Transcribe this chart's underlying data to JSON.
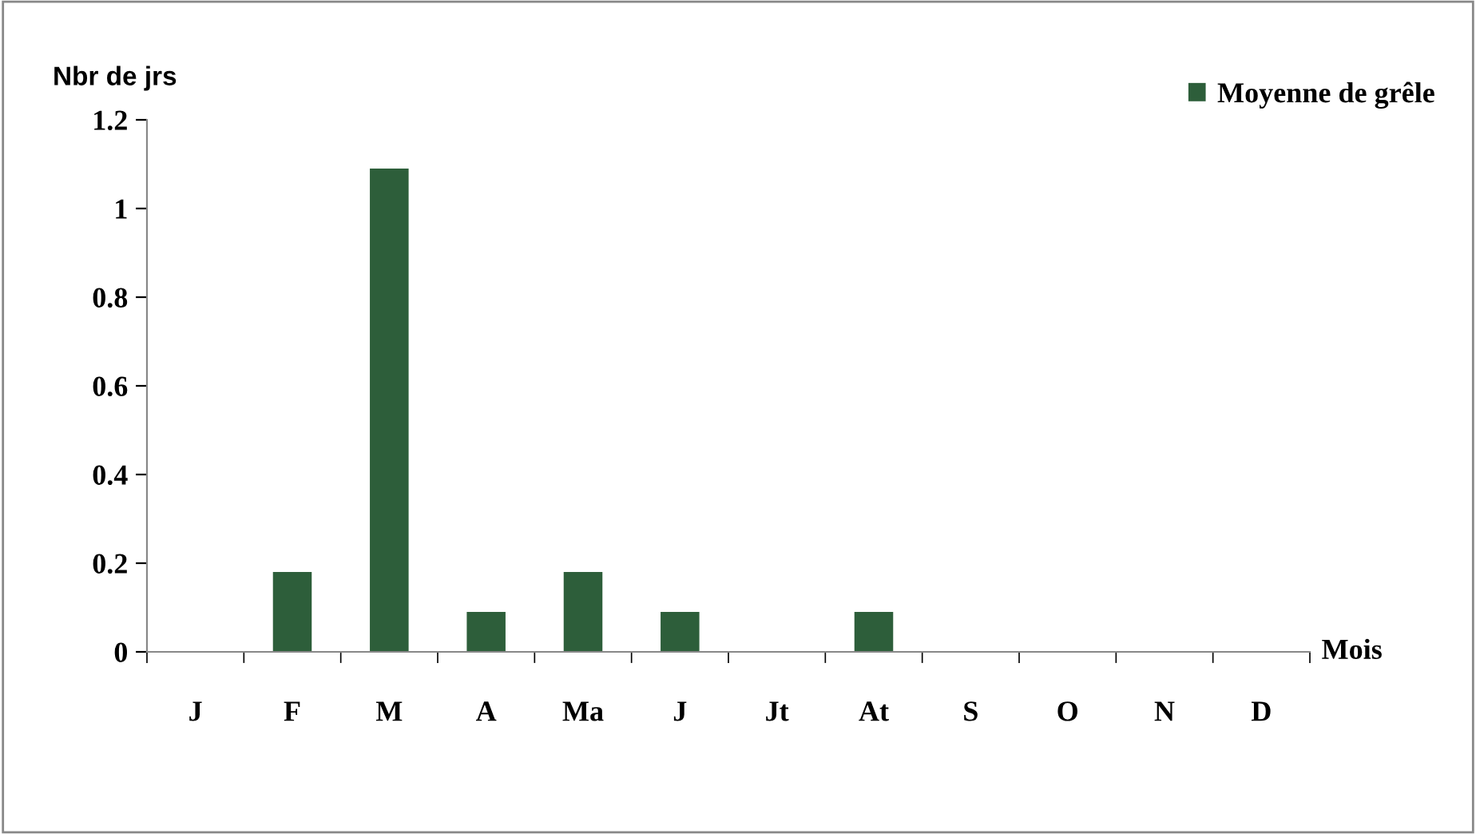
{
  "chart_data": {
    "type": "bar",
    "categories": [
      "J",
      "F",
      "M",
      "A",
      "Ma",
      "J",
      "Jt",
      "At",
      "S",
      "O",
      "N",
      "D"
    ],
    "series": [
      {
        "name": "Moyenne de grêle",
        "color": "#2d5e3a",
        "values": [
          0,
          0.18,
          1.09,
          0.09,
          0.18,
          0.09,
          0,
          0.09,
          0,
          0,
          0,
          0
        ]
      }
    ],
    "ylabel": "Nbr de jrs",
    "xlabel": "Mois",
    "ylim": [
      0,
      1.2
    ],
    "yticks": [
      0,
      0.2,
      0.4,
      0.6,
      0.8,
      1,
      1.2
    ],
    "grid": false,
    "legend": "top right"
  }
}
